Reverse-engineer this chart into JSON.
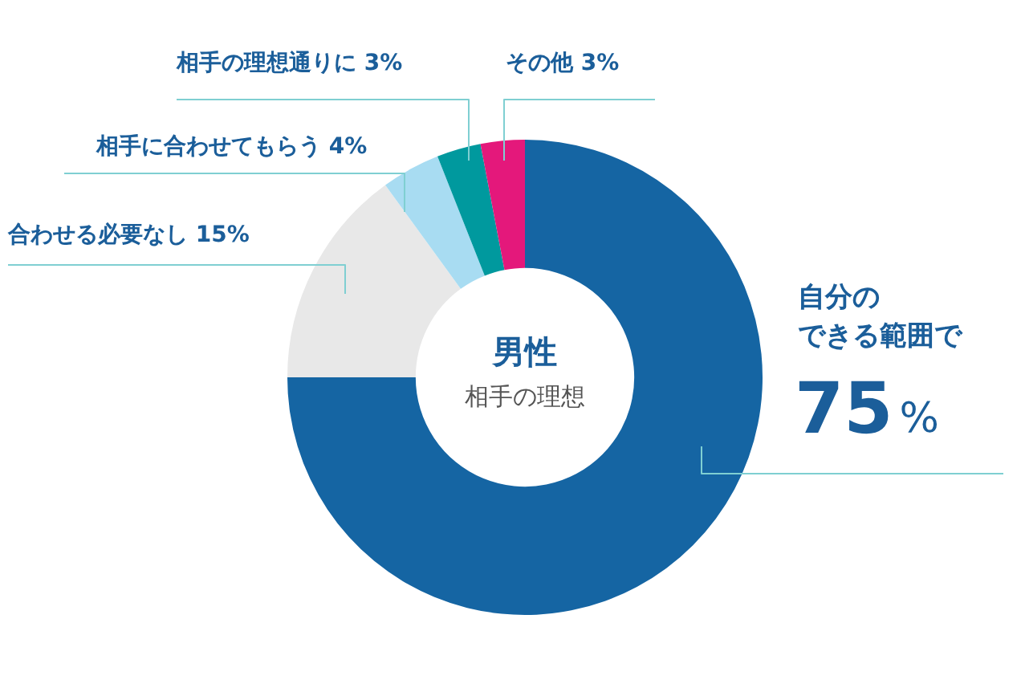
{
  "chart_data": {
    "type": "donut",
    "title": "男性",
    "subtitle": "相手の理想",
    "categories": [
      "自分のできる範囲で",
      "合わせる必要なし",
      "相手に合わせてもらう",
      "相手の理想通りに",
      "その他"
    ],
    "values": [
      75,
      15,
      4,
      3,
      3
    ],
    "value_labels": [
      "75%",
      "15%",
      "4%",
      "3%",
      "3%"
    ],
    "colors": [
      "#1565a3",
      "#e8e8e8",
      "#a8dcf2",
      "#00999e",
      "#e4187b"
    ],
    "legend": false
  }
}
